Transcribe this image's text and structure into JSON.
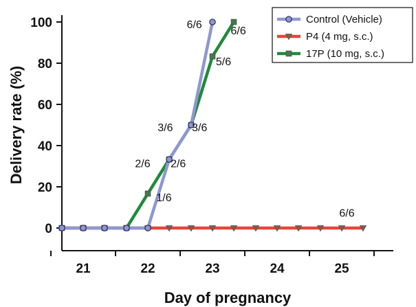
{
  "chart_data": {
    "type": "line",
    "xlabel": "Day of pregnancy",
    "ylabel": "Delivery rate (%)",
    "xlim": [
      20.67,
      25.67
    ],
    "ylim": [
      0,
      100
    ],
    "x_ticks": [
      "21",
      "22",
      "23",
      "24",
      "25"
    ],
    "y_ticks": [
      "0",
      "20",
      "40",
      "60",
      "80",
      "100"
    ],
    "grid": false,
    "legend_position": "top-right",
    "series": [
      {
        "name": "Control (Vehicle)",
        "color": "#8e97d0",
        "marker": "circle",
        "x": [
          20.67,
          21.0,
          21.33,
          21.67,
          22.0,
          22.33,
          22.67,
          23.0
        ],
        "y": [
          0,
          0,
          0,
          0,
          0,
          33.3,
          50,
          100
        ]
      },
      {
        "name": "P4 (4 mg, s.c.)",
        "color": "#e8443a",
        "marker": "triangle-down",
        "x": [
          20.67,
          21.0,
          21.33,
          21.67,
          22.0,
          22.33,
          22.67,
          23.0,
          23.33,
          23.67,
          24.0,
          24.33,
          24.67,
          25.0,
          25.33
        ],
        "y": [
          0,
          0,
          0,
          0,
          0,
          0,
          0,
          0,
          0,
          0,
          0,
          0,
          0,
          0,
          0
        ]
      },
      {
        "name": "17P (10 mg, s.c.)",
        "color": "#1f8a3a",
        "marker": "square",
        "x": [
          20.67,
          21.0,
          21.33,
          21.67,
          22.0,
          22.33,
          22.67,
          23.0,
          23.33
        ],
        "y": [
          0,
          0,
          0,
          0,
          16.7,
          33.3,
          50,
          83.3,
          100
        ]
      }
    ],
    "annotations": [
      {
        "text": "6/6",
        "x": 22.72,
        "y": 99
      },
      {
        "text": "6/6",
        "x": 23.4,
        "y": 96
      },
      {
        "text": "5/6",
        "x": 23.17,
        "y": 81
      },
      {
        "text": "3/6",
        "x": 22.27,
        "y": 49
      },
      {
        "text": "3/6",
        "x": 22.8,
        "y": 49
      },
      {
        "text": "2/6",
        "x": 21.92,
        "y": 31.5
      },
      {
        "text": "2/6",
        "x": 22.47,
        "y": 31.5
      },
      {
        "text": "1/6",
        "x": 22.25,
        "y": 15
      },
      {
        "text": "6/6",
        "x": 25.08,
        "y": 7.5
      }
    ]
  }
}
